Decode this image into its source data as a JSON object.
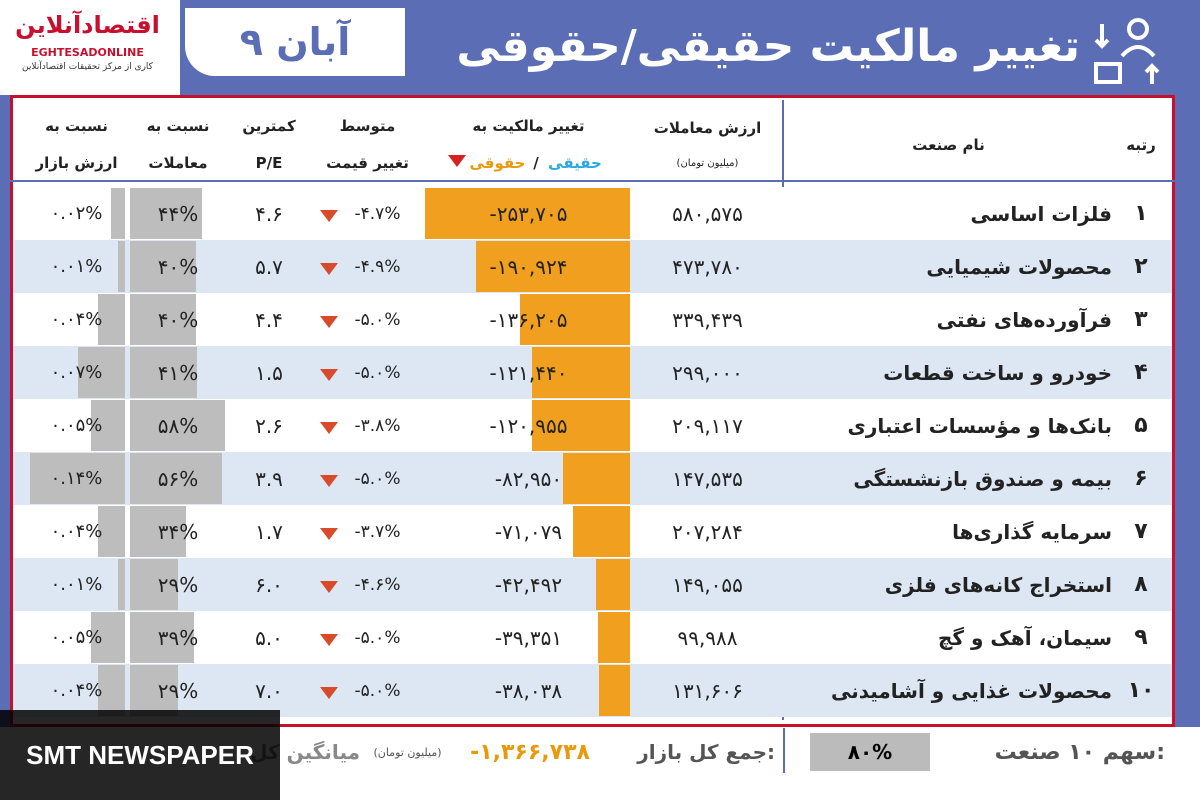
{
  "header": {
    "title": "تغییر مالکیت حقیقی/حقوقی",
    "date": "۹ آبان",
    "logo": {
      "name": "اقتصادآنلاین",
      "latin": "EGHTESADONLINE",
      "tagline": "کاری از مرکز تحقیقات اقتصادآنلاین"
    }
  },
  "table": {
    "columns": {
      "rank": "رتبه",
      "name": "نام صنعت",
      "value": "ارزش معاملات",
      "value_unit": "(میلیون تومان)",
      "change": "تغییر مالکیت به",
      "change_real": "حقیقی",
      "change_sep": "/",
      "change_legal": "حقوقی",
      "price_1": "متوسط",
      "price_2": "تغییر قیمت",
      "pe_1": "کمترین",
      "pe_2": "P/E",
      "trade_1": "نسبت به",
      "trade_2": "معاملات",
      "market_1": "نسبت به",
      "market_2": "ارزش بازار"
    },
    "rows": [
      [
        "۱",
        "فلزات اساسی",
        "۵۸۰,۵۷۵",
        "-۲۵۳,۷۰۵",
        "-۴.۷%",
        "۴.۶",
        "۴۴%",
        "۰.۰۲%"
      ],
      [
        "۲",
        "محصولات شیمیایی",
        "۴۷۳,۷۸۰",
        "-۱۹۰,۹۲۴",
        "-۴.۹%",
        "۵.۷",
        "۴۰%",
        "۰.۰۱%"
      ],
      [
        "۳",
        "فرآورده‌های نفتی",
        "۳۳۹,۴۳۹",
        "-۱۳۶,۲۰۵",
        "-۵.۰%",
        "۴.۴",
        "۴۰%",
        "۰.۰۴%"
      ],
      [
        "۴",
        "خودرو و ساخت قطعات",
        "۲۹۹,۰۰۰",
        "-۱۲۱,۴۴۰",
        "-۵.۰%",
        "۱.۵",
        "۴۱%",
        "۰.۰۷%"
      ],
      [
        "۵",
        "بانک‌ها و مؤسسات اعتباری",
        "۲۰۹,۱۱۷",
        "-۱۲۰,۹۵۵",
        "-۳.۸%",
        "۲.۶",
        "۵۸%",
        "۰.۰۵%"
      ],
      [
        "۶",
        "بیمه و صندوق بازنشستگی",
        "۱۴۷,۵۳۵",
        "-۸۲,۹۵۰",
        "-۵.۰%",
        "۳.۹",
        "۵۶%",
        "۰.۱۴%"
      ],
      [
        "۷",
        "سرمایه گذاری‌ها",
        "۲۰۷,۲۸۴",
        "-۷۱,۰۷۹",
        "-۳.۷%",
        "۱.۷",
        "۳۴%",
        "۰.۰۴%"
      ],
      [
        "۸",
        "استخراج کانه‌های فلزی",
        "۱۴۹,۰۵۵",
        "-۴۲,۴۹۲",
        "-۴.۶%",
        "۶.۰",
        "۲۹%",
        "۰.۰۱%"
      ],
      [
        "۹",
        "سیمان، آهک و گچ",
        "۹۹,۹۸۸",
        "-۳۹,۳۵۱",
        "-۵.۰%",
        "۵.۰",
        "۳۹%",
        "۰.۰۵%"
      ],
      [
        "۱۰",
        "محصولات غذایی و آشامیدنی",
        "۱۳۱,۶۰۶",
        "-۳۸,۰۳۸",
        "-۵.۰%",
        "۷.۰",
        "۲۹%",
        "۰.۰۴%"
      ]
    ]
  },
  "footer": {
    "share_label": "سهم ۱۰ صنعت:",
    "share_value": "۸۰%",
    "total_label": "جمع کل بازار:",
    "total_value": "-۱,۳۶۶,۷۳۸",
    "total_unit": "(میلیون تومان)",
    "avg_label": "میانگین کل"
  },
  "watermark": "SMT NEWSPAPER"
}
